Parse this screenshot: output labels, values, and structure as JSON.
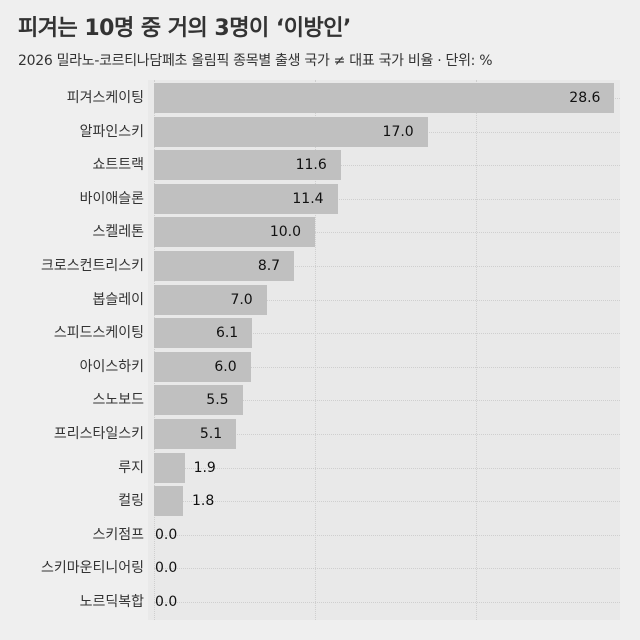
{
  "header": {
    "title": "피겨는 10명 중 거의 3명이 ‘이방인’",
    "subtitle": "2026 밀라노-코르티나담페초 올림픽 종목별 출생 국가 ≠ 대표 국가 비율 · 단위: %"
  },
  "colors": {
    "background": "#efefef",
    "plot_background": "#e9e9e9",
    "bar": "#c0c0c0",
    "text": "#333333"
  },
  "chart_data": {
    "type": "bar",
    "orientation": "horizontal",
    "title": "피겨는 10명 중 거의 3명이 ‘이방인’",
    "subtitle": "2026 밀라노-코르티나담페초 올림픽 종목별 출생 국가 ≠ 대표 국가 비율 · 단위: %",
    "xlabel": "",
    "ylabel": "",
    "unit": "%",
    "xlim": [
      0,
      29.3
    ],
    "grid": true,
    "gridlines_x": [
      0,
      10,
      20
    ],
    "legend": null,
    "categories": [
      "피겨스케이팅",
      "알파인스키",
      "쇼트트랙",
      "바이애슬론",
      "스켈레톤",
      "크로스컨트리스키",
      "봅슬레이",
      "스피드스케이팅",
      "아이스하키",
      "스노보드",
      "프리스타일스키",
      "루지",
      "컬링",
      "스키점프",
      "스키마운티니어링",
      "노르딕복합"
    ],
    "values": [
      28.6,
      17.0,
      11.6,
      11.4,
      10.0,
      8.7,
      7.0,
      6.1,
      6.0,
      5.5,
      5.1,
      1.9,
      1.8,
      0.0,
      0.0,
      0.0
    ],
    "value_labels": [
      "28.6",
      "17.0",
      "11.6",
      "11.4",
      "10.0",
      "8.7",
      "7.0",
      "6.1",
      "6.0",
      "5.5",
      "5.1",
      "1.9",
      "1.8",
      "0.0",
      "0.0",
      "0.0"
    ]
  }
}
